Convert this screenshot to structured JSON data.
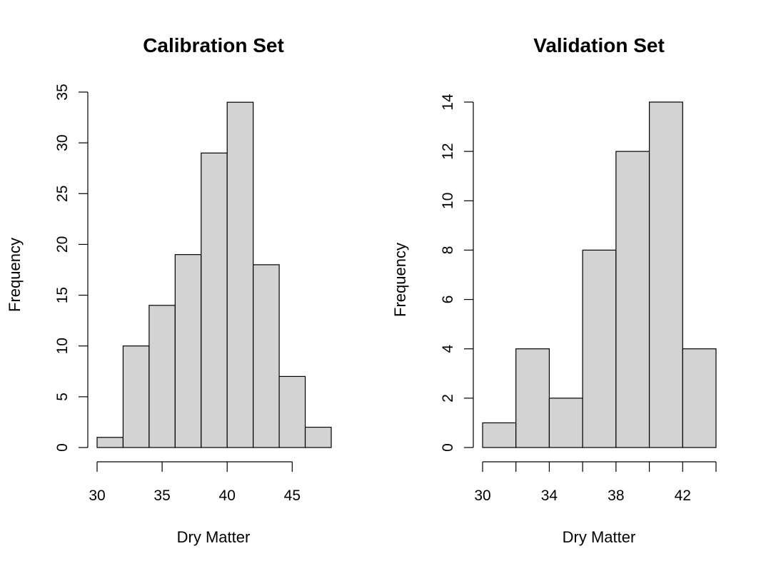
{
  "chart_data": [
    {
      "type": "bar",
      "title": "Calibration Set",
      "xlabel": "Dry Matter",
      "ylabel": "Frequency",
      "bin_edges": [
        30,
        32,
        34,
        36,
        38,
        40,
        42,
        44,
        46,
        48
      ],
      "values": [
        1,
        10,
        14,
        19,
        29,
        34,
        18,
        7,
        2
      ],
      "xticks": [
        30,
        35,
        40,
        45
      ],
      "yticks": [
        0,
        5,
        10,
        15,
        20,
        25,
        30,
        35
      ],
      "xlim": [
        30,
        48
      ],
      "ylim": [
        0,
        35
      ],
      "bar_color": "#d3d3d3",
      "grid": false
    },
    {
      "type": "bar",
      "title": "Validation Set",
      "xlabel": "Dry Matter",
      "ylabel": "Frequency",
      "bin_edges": [
        30,
        32,
        34,
        36,
        38,
        40,
        42,
        44
      ],
      "values": [
        1,
        4,
        2,
        8,
        12,
        14,
        4
      ],
      "xticks": [
        30,
        34,
        38,
        42
      ],
      "xtick_marks": [
        30,
        32,
        34,
        36,
        38,
        40,
        42,
        44
      ],
      "yticks": [
        0,
        2,
        4,
        6,
        8,
        10,
        12,
        14
      ],
      "xlim": [
        30,
        44
      ],
      "ylim": [
        0,
        14
      ],
      "bar_color": "#d3d3d3",
      "grid": false
    }
  ]
}
